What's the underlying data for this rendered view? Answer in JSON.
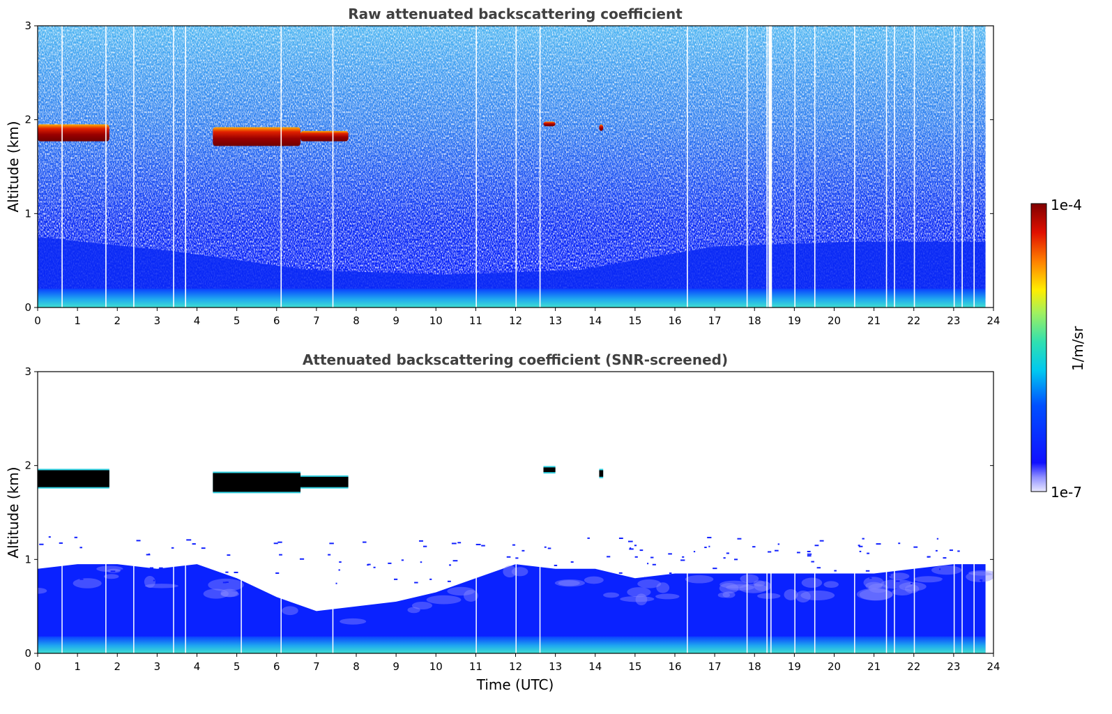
{
  "chart_data": [
    {
      "type": "heatmap",
      "title": "Raw attenuated backscattering coefficient",
      "xlabel": "",
      "ylabel": "Altitude (km)",
      "xlim": [
        0,
        24
      ],
      "ylim": [
        0,
        3
      ],
      "xticks": [
        "0",
        "1",
        "2",
        "3",
        "4",
        "5",
        "6",
        "7",
        "8",
        "9",
        "10",
        "11",
        "12",
        "13",
        "14",
        "15",
        "16",
        "17",
        "18",
        "19",
        "20",
        "21",
        "22",
        "23",
        "24"
      ],
      "yticks": [
        "0",
        "1",
        "2",
        "3"
      ],
      "cloud_layers": [
        {
          "t_start": 0.0,
          "t_end": 1.8,
          "alt_bottom": 1.77,
          "alt_top": 1.95
        },
        {
          "t_start": 4.4,
          "t_end": 6.6,
          "alt_bottom": 1.72,
          "alt_top": 1.92
        },
        {
          "t_start": 6.6,
          "t_end": 7.8,
          "alt_bottom": 1.77,
          "alt_top": 1.88
        },
        {
          "t_start": 12.7,
          "t_end": 13.0,
          "alt_bottom": 1.93,
          "alt_top": 1.98
        },
        {
          "t_start": 14.1,
          "t_end": 14.2,
          "alt_bottom": 1.88,
          "alt_top": 1.95
        }
      ],
      "boundary_layer_top_km": [
        0.75,
        0.6,
        0.4,
        0.35,
        0.4,
        0.65,
        0.7,
        0.7
      ],
      "colorbar": {
        "label": "1/m/sr",
        "min_label": "1e-7",
        "max_label": "1e-4"
      }
    },
    {
      "type": "heatmap",
      "title": "Attenuated backscattering coefficient (SNR-screened)",
      "xlabel": "Time (UTC)",
      "ylabel": "Altitude (km)",
      "xlim": [
        0,
        24
      ],
      "ylim": [
        0,
        3
      ],
      "xticks": [
        "0",
        "1",
        "2",
        "3",
        "4",
        "5",
        "6",
        "7",
        "8",
        "9",
        "10",
        "11",
        "12",
        "13",
        "14",
        "15",
        "16",
        "17",
        "18",
        "19",
        "20",
        "21",
        "22",
        "23",
        "24"
      ],
      "yticks": [
        "0",
        "1",
        "2",
        "3"
      ],
      "aerosol_top_km": [
        [
          0,
          0.9
        ],
        [
          1,
          0.95
        ],
        [
          2,
          0.95
        ],
        [
          3,
          0.9
        ],
        [
          4,
          0.95
        ],
        [
          5,
          0.8
        ],
        [
          6,
          0.6
        ],
        [
          7,
          0.45
        ],
        [
          8,
          0.5
        ],
        [
          9,
          0.55
        ],
        [
          10,
          0.65
        ],
        [
          11,
          0.8
        ],
        [
          12,
          0.95
        ],
        [
          13,
          0.9
        ],
        [
          14,
          0.9
        ],
        [
          15,
          0.8
        ],
        [
          16,
          0.85
        ],
        [
          17,
          0.85
        ],
        [
          18,
          0.85
        ],
        [
          19,
          0.85
        ],
        [
          20,
          0.85
        ],
        [
          21,
          0.85
        ],
        [
          22,
          0.9
        ],
        [
          23,
          0.95
        ],
        [
          23.8,
          0.95
        ]
      ]
    }
  ],
  "colorbar": {
    "label": "1/m/sr",
    "max_label": "1e-4",
    "min_label": "1e-7"
  },
  "colors": {
    "cloud": "#8b0000",
    "aerosol": "#0a1eff",
    "surface": "#30d0e0",
    "axis": "#000000"
  }
}
